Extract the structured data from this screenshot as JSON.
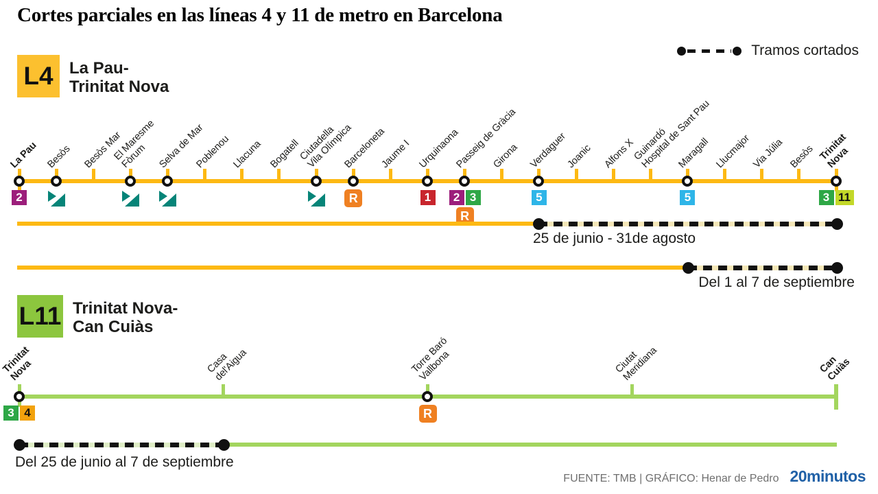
{
  "title": "Cortes parciales en las líneas 4 y 11 de metro en Barcelona",
  "legend": {
    "label": "Tramos cortados"
  },
  "colors": {
    "l4_line": "#FDB913",
    "l4_badge_bg": "#FCC02F",
    "l4_cut_band": "#F4E7B8",
    "l11_line": "#A3D55E",
    "l11_badge_bg": "#8CC63E",
    "l11_cut_band": "#DEEDC5",
    "cut_dash": "#111111",
    "brand_blue": "#2061A7"
  },
  "badges": {
    "m1": {
      "label": "1",
      "bg": "#C8252D",
      "fg": "#FFFFFF",
      "type": "metro"
    },
    "m2": {
      "label": "2",
      "bg": "#9C1E7B",
      "fg": "#FFFFFF",
      "type": "metro"
    },
    "m3": {
      "label": "3",
      "bg": "#2EA746",
      "fg": "#FFFFFF",
      "type": "metro"
    },
    "m4": {
      "label": "4",
      "bg": "#F2A20D",
      "fg": "#111111",
      "type": "metro"
    },
    "m5": {
      "label": "5",
      "bg": "#2EB5E8",
      "fg": "#FFFFFF",
      "type": "metro"
    },
    "m11": {
      "label": "11",
      "bg": "#C3D829",
      "fg": "#111111",
      "type": "metro"
    },
    "R": {
      "label": "R",
      "bg": "#EF8022",
      "fg": "#FFFFFF",
      "type": "rodalies"
    },
    "tram": {
      "label": "tram-icon",
      "color": "#068478",
      "type": "tram"
    }
  },
  "l4": {
    "badge": "L4",
    "heading": "La Pau-\nTrinitat Nova",
    "stations": [
      {
        "name": "La Pau",
        "marker": "circle",
        "bold": true,
        "badges": [
          "m2"
        ],
        "stub": true
      },
      {
        "name": "Besòs",
        "marker": "circle",
        "badges": [
          "tram"
        ]
      },
      {
        "name": "Besòs Mar",
        "marker": "tick"
      },
      {
        "name": "El Maresme\nFòrum",
        "marker": "circle",
        "badges": [
          "tram"
        ]
      },
      {
        "name": "Selva de Mar",
        "marker": "circle",
        "badges": [
          "tram"
        ]
      },
      {
        "name": "Poblenou",
        "marker": "tick"
      },
      {
        "name": "Llacuna",
        "marker": "tick"
      },
      {
        "name": "Bogatell",
        "marker": "tick"
      },
      {
        "name": "Ciutadella\nVila Olímpica",
        "marker": "circle",
        "badges": [
          "tram"
        ]
      },
      {
        "name": "Barceloneta",
        "marker": "circle",
        "badges": [
          "R"
        ]
      },
      {
        "name": "Jaume I",
        "marker": "tick"
      },
      {
        "name": "Urquinaona",
        "marker": "circle",
        "badges": [
          "m1"
        ]
      },
      {
        "name": "Passeig de Gràcia",
        "marker": "circle",
        "badges": [
          "m2",
          "m3"
        ],
        "badges2": [
          "R"
        ]
      },
      {
        "name": "Girona",
        "marker": "tick"
      },
      {
        "name": "Verdaguer",
        "marker": "circle",
        "badges": [
          "m5"
        ]
      },
      {
        "name": "Joanic",
        "marker": "tick"
      },
      {
        "name": "Alfons X",
        "marker": "tick"
      },
      {
        "name": "Guinardó\nHospital de Sant Pau",
        "marker": "tick"
      },
      {
        "name": "Maragall",
        "marker": "circle",
        "badges": [
          "m5"
        ]
      },
      {
        "name": "Llucmajor",
        "marker": "tick"
      },
      {
        "name": "Via Júlia",
        "marker": "tick"
      },
      {
        "name": "Besòs",
        "marker": "tick"
      },
      {
        "name": "Trinitat\nNova",
        "marker": "circle",
        "bold": true,
        "badges": [
          "m3",
          "m11"
        ],
        "stub": true
      }
    ],
    "closures": [
      {
        "label": "25 de junio - 31de agosto",
        "from": "Verdaguer",
        "to": "Trinitat Nova",
        "solid_from": 25,
        "cut_from": 785,
        "cut_to": 1220,
        "label_pos": "cut-left"
      },
      {
        "label": "Del 1 al 7 de septiembre",
        "from": "Maragall",
        "to": "Trinitat Nova",
        "solid_from": 25,
        "cut_from": 1003,
        "cut_to": 1220,
        "label_pos": "end-right"
      }
    ]
  },
  "l11": {
    "badge": "L11",
    "heading": "Trinitat Nova-\nCan Cuiàs",
    "stations": [
      {
        "name": "Trinitat\nNova",
        "marker": "circle",
        "bold": true,
        "badges": [
          "m3",
          "m4"
        ],
        "stub": true
      },
      {
        "name": "Casa\ndel'Aigua",
        "marker": "tick"
      },
      {
        "name": "Torre Baró\nVallbona",
        "marker": "circle",
        "badges": [
          "R"
        ]
      },
      {
        "name": "Ciutat\nMeridiana",
        "marker": "tick"
      },
      {
        "name": "Can\nCuiàs",
        "marker": "terminal",
        "bold": true
      }
    ],
    "closures": [
      {
        "label": "Del 25 de junio al 7 de septiembre",
        "from": "Trinitat Nova",
        "to": "Casa de l'Aigua",
        "cut_from": 28,
        "cut_to": 326,
        "solid_to": 1220,
        "label_pos": "start-left"
      }
    ]
  },
  "footer": {
    "source": "FUENTE: TMB  |  GRÁFICO: Henar de Pedro",
    "brand": "20minutos"
  }
}
